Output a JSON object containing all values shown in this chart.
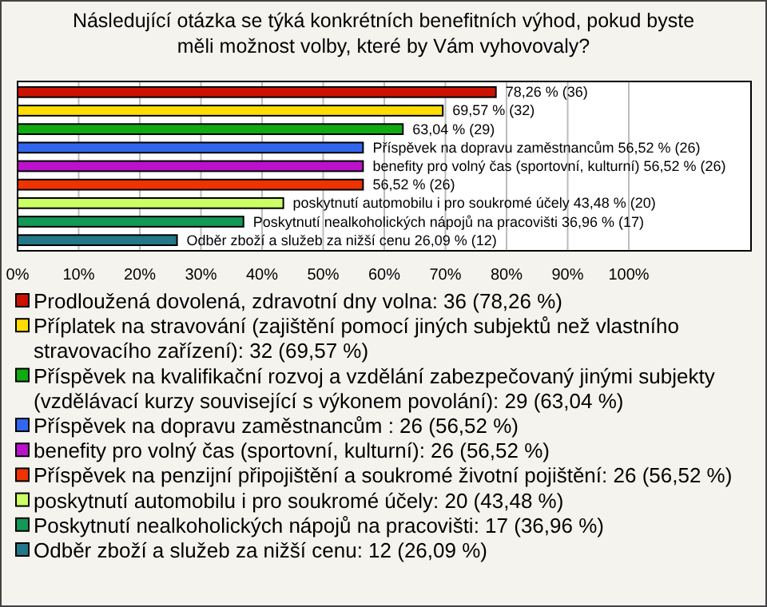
{
  "chart_data": {
    "type": "bar",
    "orientation": "horizontal",
    "stacked": true,
    "title": "Následující otázka se týká konkrétních benefitních výhod, pokud byste měli možnost volby, které by Vám vyhovovaly?",
    "categories": [
      null,
      null,
      null,
      null,
      null,
      null,
      null,
      null,
      null
    ],
    "series": [
      {
        "name": "Prodloužená dovolená, zdravotní dny volna: 36 (78,26 %)",
        "color": "#cc1100",
        "values": [
          78.26,
          null,
          null,
          null,
          null,
          null,
          null,
          null,
          null
        ],
        "value_labels": [
          "78,26 % (36)",
          null,
          null,
          null,
          null,
          null,
          null,
          null,
          null
        ]
      },
      {
        "name": "Příplatek na stravování (zajištění pomocí jiných subjektů než vlastního stravovacího zařízení): 32 (69,57 %)",
        "color": "#ffdd00",
        "values": [
          null,
          69.57,
          null,
          null,
          null,
          null,
          null,
          null,
          null
        ],
        "value_labels": [
          null,
          "69,57 % (32)",
          null,
          null,
          null,
          null,
          null,
          null,
          null
        ]
      },
      {
        "name": "Příspěvek na kvalifikační rozvoj a vzdělání zabezpečovaný jinými subjekty (vzdělávací kurzy související s výkonem povolání): 29 (63,04 %)",
        "color": "#11aa11",
        "values": [
          null,
          null,
          63.04,
          null,
          null,
          null,
          null,
          null,
          null
        ],
        "value_labels": [
          null,
          null,
          "63,04 % (29)",
          null,
          null,
          null,
          null,
          null,
          null
        ]
      },
      {
        "name": "Příspěvek na dopravu zaměstnancům : 26 (56,52 %)",
        "color": "#3366ee",
        "values": [
          null,
          null,
          null,
          56.52,
          null,
          null,
          null,
          null,
          null
        ],
        "value_labels": [
          null,
          null,
          null,
          "Příspěvek na dopravu zaměstnancům  56,52 % (26)",
          null,
          null,
          null,
          null,
          null
        ]
      },
      {
        "name": "benefity pro volný čas (sportovní, kulturní): 26 (56,52 %)",
        "color": "#bb11cc",
        "values": [
          null,
          null,
          null,
          null,
          56.52,
          null,
          null,
          null,
          null
        ],
        "value_labels": [
          null,
          null,
          null,
          null,
          "benefity pro volný čas (sportovní, kulturní) 56,52 % (26)",
          null,
          null,
          null,
          null
        ]
      },
      {
        "name": "Příspěvek na penzijní připojištění a soukromé životní pojištění: 26 (56,52 %)",
        "color": "#ee3300",
        "values": [
          null,
          null,
          null,
          null,
          null,
          56.52,
          null,
          null,
          null
        ],
        "value_labels": [
          null,
          null,
          null,
          null,
          null,
          "56,52 % (26)",
          null,
          null,
          null
        ]
      },
      {
        "name": "poskytnutí automobilu i pro soukromé účely: 20 (43,48 %)",
        "color": "#ccff66",
        "values": [
          null,
          null,
          null,
          null,
          null,
          null,
          43.48,
          null,
          null
        ],
        "value_labels": [
          null,
          null,
          null,
          null,
          null,
          null,
          "poskytnutí automobilu i pro soukromé účely 43,48 % (20)",
          null,
          null
        ]
      },
      {
        "name": "Poskytnutí nealkoholických nápojů na pracovišti: 17 (36,96 %)",
        "color": "#119955",
        "values": [
          null,
          null,
          null,
          null,
          null,
          null,
          null,
          36.96,
          null
        ],
        "value_labels": [
          null,
          null,
          null,
          null,
          null,
          null,
          null,
          "Poskytnutí nealkoholických nápojů na pracovišti 36,96 % (17)",
          null
        ]
      },
      {
        "name": "Odběr zboží a služeb za nižší cenu: 12 (26,09 %)",
        "color": "#227788",
        "values": [
          null,
          null,
          null,
          null,
          null,
          null,
          null,
          null,
          26.09
        ],
        "value_labels": [
          null,
          null,
          null,
          null,
          null,
          null,
          null,
          null,
          "Odběr zboží a služeb za nižší cenu 26,09 % (12)"
        ]
      }
    ],
    "xlim": [
      0,
      120
    ],
    "xticks": [
      {
        "value": 0,
        "label": "0%"
      },
      {
        "value": 10,
        "label": "10%"
      },
      {
        "value": 20,
        "label": "20%"
      },
      {
        "value": 30,
        "label": "30%"
      },
      {
        "value": 40,
        "label": "40%"
      },
      {
        "value": 50,
        "label": "50%"
      },
      {
        "value": 60,
        "label": "60%"
      },
      {
        "value": 70,
        "label": "70%"
      },
      {
        "value": 80,
        "label": "80%"
      },
      {
        "value": 90,
        "label": "90%"
      },
      {
        "value": 100,
        "label": "100%"
      }
    ],
    "grid": "x",
    "legend": "bottom"
  }
}
